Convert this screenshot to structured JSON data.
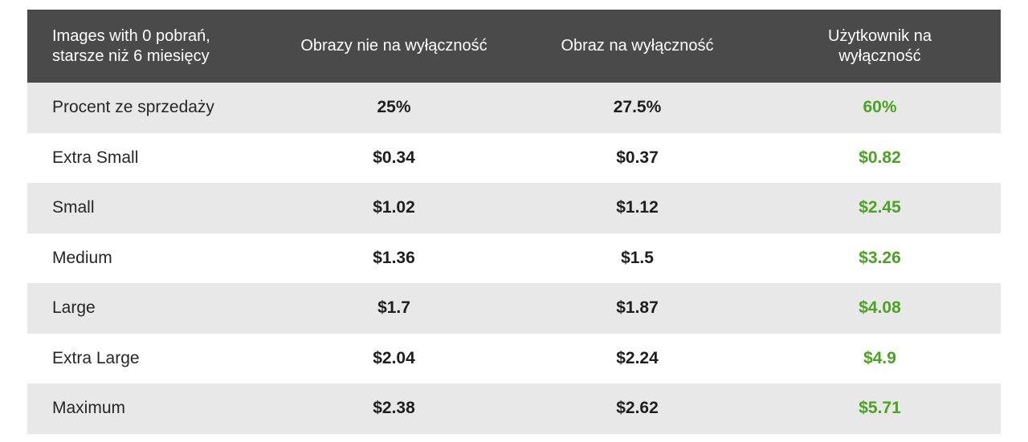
{
  "table": {
    "headers": [
      "Images with 0 pobrań, starsze niż 6 miesięcy",
      "Obrazy nie na wyłączność",
      "Obraz na wyłączność",
      "Użytkownik na wyłączność"
    ],
    "rows": [
      {
        "label": "Procent ze sprzedaży",
        "non_exclusive": "25%",
        "exclusive_image": "27.5%",
        "exclusive_user": "60%"
      },
      {
        "label": "Extra Small",
        "non_exclusive": "$0.34",
        "exclusive_image": "$0.37",
        "exclusive_user": "$0.82"
      },
      {
        "label": "Small",
        "non_exclusive": "$1.02",
        "exclusive_image": "$1.12",
        "exclusive_user": "$2.45"
      },
      {
        "label": "Medium",
        "non_exclusive": "$1.36",
        "exclusive_image": "$1.5",
        "exclusive_user": "$3.26"
      },
      {
        "label": "Large",
        "non_exclusive": "$1.7",
        "exclusive_image": "$1.87",
        "exclusive_user": "$4.08"
      },
      {
        "label": "Extra Large",
        "non_exclusive": "$2.04",
        "exclusive_image": "$2.24",
        "exclusive_user": "$4.9"
      },
      {
        "label": "Maximum",
        "non_exclusive": "$2.38",
        "exclusive_image": "$2.62",
        "exclusive_user": "$5.71"
      }
    ]
  },
  "colors": {
    "header_bg": "#4a4a4a",
    "header_text": "#ffffff",
    "accent": "#4aa321",
    "row_alt_bg": "#e8e8e8"
  }
}
